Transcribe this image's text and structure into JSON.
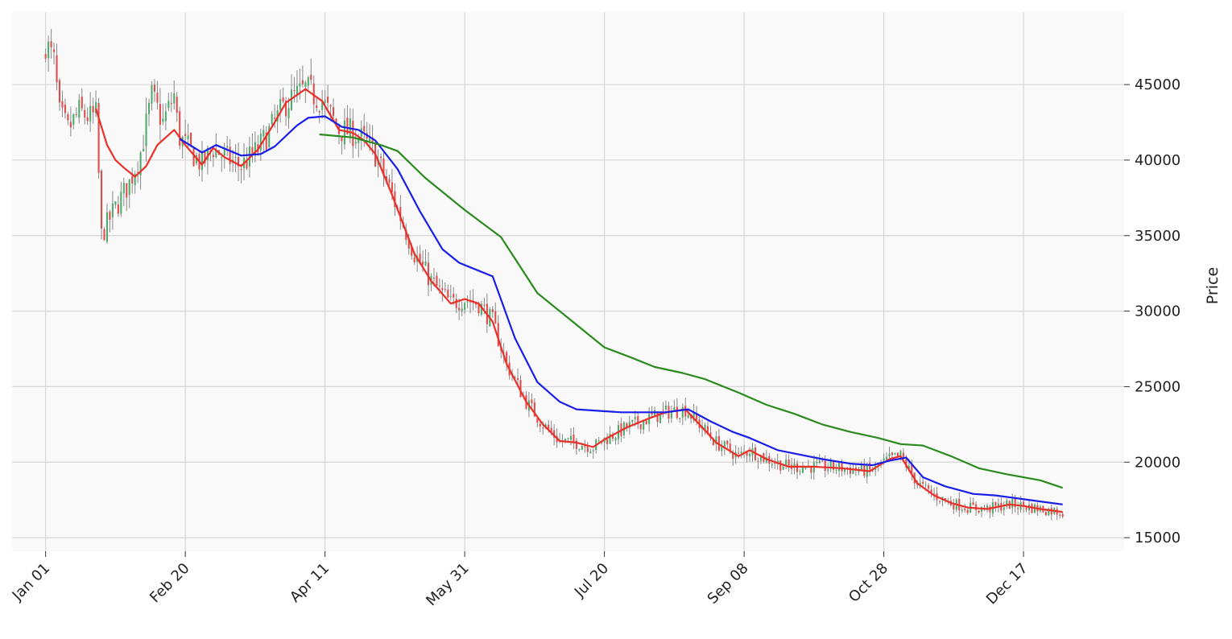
{
  "chart_data": {
    "type": "candlestick",
    "title": "",
    "xlabel": "",
    "ylabel": "Price",
    "x_tick_labels": [
      "Jan 01",
      "Feb 20",
      "Apr 11",
      "May 31",
      "Jul 20",
      "Sep 08",
      "Oct 28",
      "Dec 17"
    ],
    "x_tick_days": [
      0,
      50,
      100,
      150,
      200,
      250,
      300,
      350
    ],
    "xlim": [
      -12,
      386
    ],
    "y_tick_labels": [
      "15000",
      "20000",
      "25000",
      "30000",
      "35000",
      "40000",
      "45000"
    ],
    "y_ticks": [
      15000,
      20000,
      25000,
      30000,
      35000,
      40000,
      45000
    ],
    "ylim": [
      14100,
      49800
    ],
    "y_axis_side": "right",
    "grid": true,
    "candle_colors": {
      "up": "#4fab6d",
      "down": "#de4c4c",
      "wick": "#888888"
    },
    "moving_average_anchors": [
      {
        "color": "#e8302a",
        "start_day": 18,
        "points": [
          [
            18,
            43400
          ],
          [
            22,
            41000
          ],
          [
            25,
            40000
          ],
          [
            28,
            39500
          ],
          [
            32,
            38900
          ],
          [
            36,
            39600
          ],
          [
            40,
            41000
          ],
          [
            46,
            42000
          ],
          [
            50,
            41000
          ],
          [
            56,
            39700
          ],
          [
            60,
            40800
          ],
          [
            64,
            40200
          ],
          [
            70,
            39600
          ],
          [
            76,
            40700
          ],
          [
            82,
            42500
          ],
          [
            86,
            43800
          ],
          [
            93,
            44700
          ],
          [
            99,
            43900
          ],
          [
            105,
            42000
          ],
          [
            110,
            41800
          ],
          [
            114,
            41300
          ],
          [
            118,
            40400
          ],
          [
            124,
            37700
          ],
          [
            132,
            33800
          ],
          [
            138,
            32000
          ],
          [
            145,
            30500
          ],
          [
            150,
            30800
          ],
          [
            155,
            30500
          ],
          [
            160,
            29300
          ],
          [
            165,
            26500
          ],
          [
            172,
            24000
          ],
          [
            178,
            22500
          ],
          [
            184,
            21400
          ],
          [
            190,
            21300
          ],
          [
            196,
            21000
          ],
          [
            200,
            21500
          ],
          [
            208,
            22300
          ],
          [
            216,
            22900
          ],
          [
            222,
            23300
          ],
          [
            229,
            23500
          ],
          [
            234,
            22500
          ],
          [
            240,
            21300
          ],
          [
            248,
            20400
          ],
          [
            252,
            20800
          ],
          [
            258,
            20200
          ],
          [
            266,
            19700
          ],
          [
            275,
            19700
          ],
          [
            285,
            19600
          ],
          [
            295,
            19400
          ],
          [
            302,
            20200
          ],
          [
            306,
            20400
          ],
          [
            312,
            18600
          ],
          [
            318,
            17800
          ],
          [
            324,
            17300
          ],
          [
            330,
            17000
          ],
          [
            337,
            16900
          ],
          [
            345,
            17200
          ],
          [
            350,
            17100
          ],
          [
            356,
            16900
          ],
          [
            364,
            16700
          ]
        ]
      },
      {
        "color": "#1b1ee8",
        "start_day": 48,
        "points": [
          [
            48,
            41400
          ],
          [
            56,
            40500
          ],
          [
            61,
            41000
          ],
          [
            70,
            40300
          ],
          [
            77,
            40400
          ],
          [
            82,
            40900
          ],
          [
            90,
            42300
          ],
          [
            94,
            42800
          ],
          [
            100,
            42900
          ],
          [
            106,
            42200
          ],
          [
            112,
            42000
          ],
          [
            118,
            41300
          ],
          [
            126,
            39400
          ],
          [
            134,
            36600
          ],
          [
            142,
            34100
          ],
          [
            148,
            33200
          ],
          [
            152,
            32900
          ],
          [
            160,
            32300
          ],
          [
            168,
            28200
          ],
          [
            176,
            25300
          ],
          [
            184,
            24000
          ],
          [
            190,
            23500
          ],
          [
            198,
            23400
          ],
          [
            206,
            23300
          ],
          [
            216,
            23300
          ],
          [
            222,
            23300
          ],
          [
            230,
            23500
          ],
          [
            238,
            22700
          ],
          [
            246,
            22000
          ],
          [
            252,
            21600
          ],
          [
            262,
            20800
          ],
          [
            270,
            20500
          ],
          [
            278,
            20200
          ],
          [
            288,
            19900
          ],
          [
            296,
            19800
          ],
          [
            302,
            20100
          ],
          [
            308,
            20300
          ],
          [
            314,
            19000
          ],
          [
            322,
            18400
          ],
          [
            332,
            17900
          ],
          [
            340,
            17800
          ],
          [
            348,
            17600
          ],
          [
            356,
            17400
          ],
          [
            364,
            17200
          ]
        ]
      },
      {
        "color": "#2b8a1e",
        "start_day": 98,
        "points": [
          [
            98,
            41700
          ],
          [
            110,
            41500
          ],
          [
            120,
            41000
          ],
          [
            126,
            40600
          ],
          [
            136,
            38800
          ],
          [
            150,
            36700
          ],
          [
            163,
            34900
          ],
          [
            176,
            31200
          ],
          [
            188,
            29400
          ],
          [
            200,
            27600
          ],
          [
            210,
            26900
          ],
          [
            218,
            26300
          ],
          [
            228,
            25900
          ],
          [
            236,
            25500
          ],
          [
            248,
            24600
          ],
          [
            258,
            23800
          ],
          [
            268,
            23200
          ],
          [
            278,
            22500
          ],
          [
            288,
            22000
          ],
          [
            298,
            21600
          ],
          [
            306,
            21200
          ],
          [
            314,
            21100
          ],
          [
            324,
            20400
          ],
          [
            334,
            19600
          ],
          [
            344,
            19200
          ],
          [
            356,
            18800
          ],
          [
            364,
            18300
          ]
        ]
      }
    ]
  }
}
